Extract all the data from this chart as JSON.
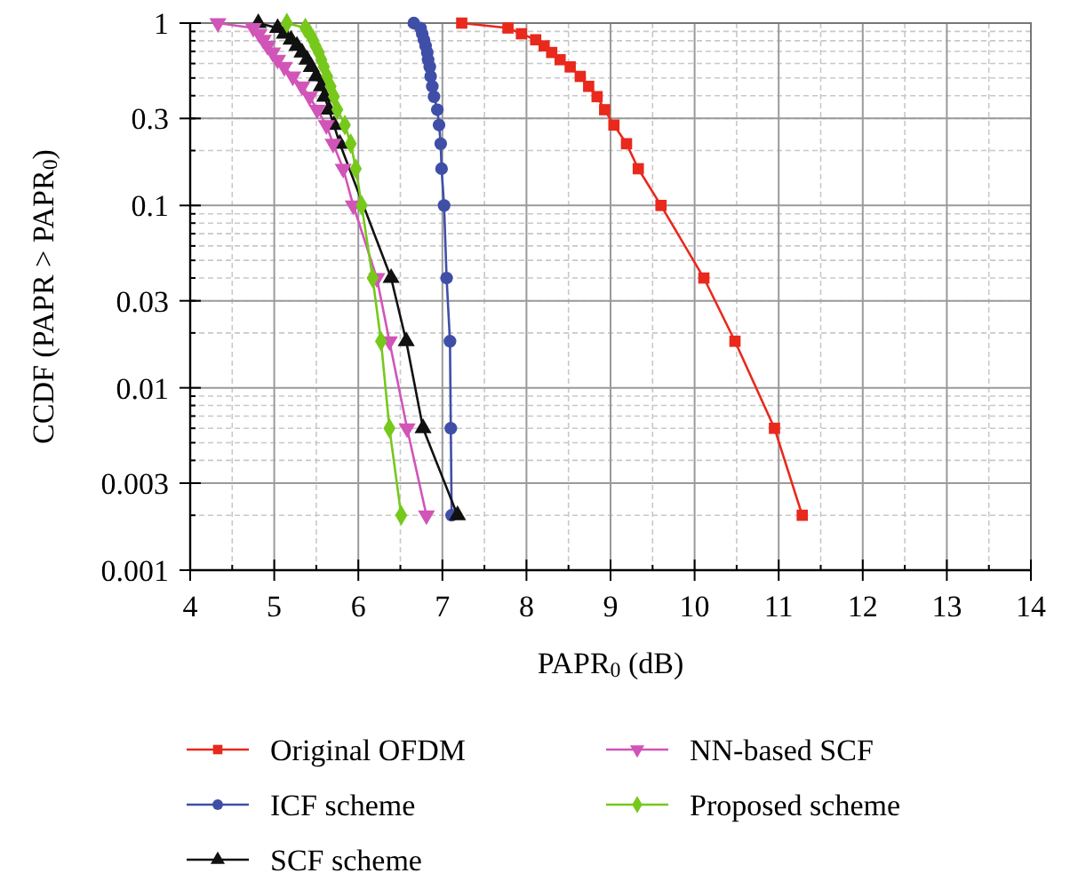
{
  "chart_data": {
    "type": "line",
    "xlabel": "PAPR$_{0}$ (dB)",
    "ylabel": "CCDF (PAPR > PAPR$_{0}$)",
    "xlim": [
      4,
      14
    ],
    "xticks": [
      4,
      5,
      6,
      7,
      8,
      9,
      10,
      11,
      12,
      13,
      14
    ],
    "ylim": [
      0.001,
      1
    ],
    "yticks": [
      1,
      0.3,
      0.1,
      0.03,
      0.01,
      0.003,
      0.001
    ],
    "log": "y",
    "grid": true,
    "legend": "bottom",
    "line_style": "solid",
    "series": [
      {
        "name": "Original OFDM",
        "color": "#e8291c",
        "marker": "square",
        "x": [
          7.23,
          7.78,
          7.94,
          8.11,
          8.21,
          8.3,
          8.4,
          8.52,
          8.64,
          8.74,
          8.84,
          8.93,
          9.04,
          9.19,
          9.33,
          9.6,
          10.11,
          10.48,
          10.95,
          11.28
        ],
        "values": [
          1,
          0.94,
          0.874,
          0.81,
          0.75,
          0.69,
          0.63,
          0.575,
          0.51,
          0.45,
          0.395,
          0.335,
          0.276,
          0.218,
          0.159,
          0.1,
          0.04,
          0.018,
          0.006,
          0.002
        ]
      },
      {
        "name": "ICF scheme",
        "color": "#3f4fa8",
        "marker": "circle",
        "x": [
          6.66,
          6.74,
          6.76,
          6.78,
          6.8,
          6.82,
          6.83,
          6.85,
          6.86,
          6.88,
          6.9,
          6.94,
          6.96,
          6.98,
          6.99,
          7.02,
          7.05,
          7.09,
          7.1,
          7.11
        ],
        "values": [
          1,
          0.94,
          0.874,
          0.81,
          0.75,
          0.69,
          0.63,
          0.575,
          0.51,
          0.45,
          0.395,
          0.335,
          0.276,
          0.218,
          0.159,
          0.1,
          0.04,
          0.018,
          0.006,
          0.002
        ]
      },
      {
        "name": "SCF scheme",
        "color": "#111111",
        "marker": "triangle",
        "x": [
          4.81,
          5.04,
          5.12,
          5.2,
          5.27,
          5.33,
          5.39,
          5.44,
          5.5,
          5.56,
          5.6,
          5.65,
          5.71,
          5.78,
          5.87,
          5.99,
          6.39,
          6.57,
          6.77,
          7.18
        ],
        "values": [
          1,
          0.94,
          0.874,
          0.81,
          0.75,
          0.69,
          0.63,
          0.575,
          0.51,
          0.45,
          0.395,
          0.335,
          0.276,
          0.218,
          null,
          null,
          0.04,
          0.018,
          0.006,
          0.002
        ]
      },
      {
        "name": "NN-based SCF",
        "color": "#d154b8",
        "marker": "triangle-down",
        "x": [
          4.33,
          4.75,
          4.82,
          4.87,
          4.92,
          4.98,
          5.04,
          5.12,
          5.22,
          5.33,
          5.42,
          5.51,
          5.62,
          5.7,
          5.82,
          5.94,
          6.22,
          6.37,
          6.58,
          6.81
        ],
        "values": [
          1,
          0.94,
          0.874,
          0.81,
          0.75,
          0.69,
          0.63,
          0.575,
          0.51,
          0.45,
          0.395,
          0.335,
          0.276,
          0.218,
          0.159,
          0.1,
          0.04,
          0.018,
          0.006,
          0.002
        ]
      },
      {
        "name": "Proposed scheme",
        "color": "#76c81a",
        "marker": "diamond",
        "x": [
          5.15,
          5.37,
          5.42,
          5.46,
          5.49,
          5.53,
          5.56,
          5.59,
          5.63,
          5.67,
          5.71,
          5.75,
          5.84,
          5.91,
          5.97,
          6.04,
          6.17,
          6.27,
          6.37,
          6.51
        ],
        "values": [
          1,
          0.94,
          0.874,
          0.81,
          0.75,
          0.69,
          0.63,
          0.575,
          0.51,
          0.45,
          0.395,
          0.335,
          0.276,
          0.218,
          0.159,
          0.1,
          0.04,
          0.018,
          0.006,
          0.002
        ]
      }
    ]
  }
}
